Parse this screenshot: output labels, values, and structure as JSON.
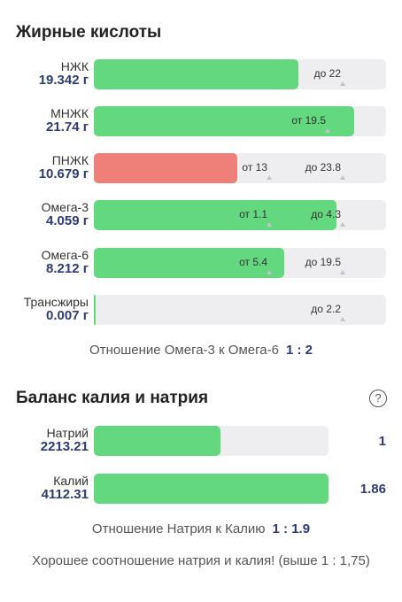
{
  "fatty_acids": {
    "title": "Жирные кислоты",
    "rows": [
      {
        "name": "НЖК",
        "value": "19.342 г",
        "fill_fraction": 0.7,
        "fill_color": "#63d87f",
        "markers": [
          {
            "text": "до 22",
            "at": 0.85
          }
        ]
      },
      {
        "name": "МНЖК",
        "value": "21.74 г",
        "fill_fraction": 0.89,
        "fill_color": "#63d87f",
        "markers": [
          {
            "text": "от 19.5",
            "at": 0.8
          }
        ]
      },
      {
        "name": "ПНЖК",
        "value": "10.679 г",
        "fill_fraction": 0.49,
        "fill_color": "#ef7f79",
        "markers": [
          {
            "text": "от 13",
            "at": 0.6
          },
          {
            "text": "до 23.8",
            "at": 0.85
          }
        ]
      },
      {
        "name": "Омега-3",
        "value": "4.059 г",
        "fill_fraction": 0.83,
        "fill_color": "#63d87f",
        "markers": [
          {
            "text": "от 1.1",
            "at": 0.6
          },
          {
            "text": "до 4.3",
            "at": 0.85
          }
        ]
      },
      {
        "name": "Омега-6",
        "value": "8.212 г",
        "fill_fraction": 0.65,
        "fill_color": "#63d87f",
        "markers": [
          {
            "text": "от 5.4",
            "at": 0.6
          },
          {
            "text": "до 19.5",
            "at": 0.85
          }
        ]
      },
      {
        "name": "Трансжиры",
        "value": "0.007 г",
        "fill_fraction": 0.005,
        "fill_color": "#63d87f",
        "markers": [
          {
            "text": "до 2.2",
            "at": 0.85
          }
        ]
      }
    ],
    "ratio_label": "Отношение Омега-3 к Омега-6",
    "ratio_value": "1 : 2"
  },
  "balance": {
    "title": "Баланс калия и натрия",
    "help_icon": "?",
    "rows": [
      {
        "name": "Натрий",
        "value": "2213.21",
        "fill_fraction": 0.54,
        "right_value": "1"
      },
      {
        "name": "Калий",
        "value": "4112.31",
        "fill_fraction": 1.0,
        "right_value": "1.86"
      }
    ],
    "ratio_label": "Отношение Натрия к Калию",
    "ratio_value": "1 : 1.9",
    "note": "Хорошее соотношение натрия и калия! (выше 1 : 1,75)"
  }
}
